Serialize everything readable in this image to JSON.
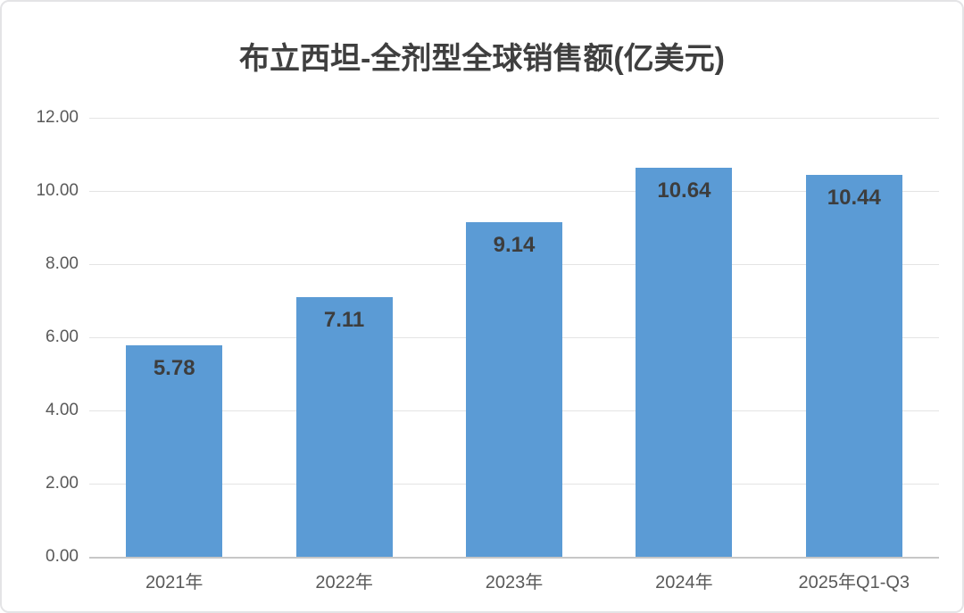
{
  "chart_data": {
    "type": "bar",
    "title": "布立西坦-全剂型全球销售额(亿美元)",
    "categories": [
      "2021年",
      "2022年",
      "2023年",
      "2024年",
      "2025年Q1-Q3"
    ],
    "values": [
      5.78,
      7.11,
      9.14,
      10.64,
      10.44
    ],
    "value_labels": [
      "5.78",
      "7.11",
      "9.14",
      "10.64",
      "10.44"
    ],
    "xlabel": "",
    "ylabel": "",
    "ylim": [
      0,
      12
    ],
    "yticks": [
      {
        "value": 0,
        "label": "0.00"
      },
      {
        "value": 2,
        "label": "2.00"
      },
      {
        "value": 4,
        "label": "4.00"
      },
      {
        "value": 6,
        "label": "6.00"
      },
      {
        "value": 8,
        "label": "8.00"
      },
      {
        "value": 10,
        "label": "10.00"
      },
      {
        "value": 12,
        "label": "12.00"
      }
    ],
    "grid": "horizontal",
    "legend": "none",
    "colors": {
      "bar": "#5b9bd5",
      "title_text": "#3f3f3f",
      "value_label_text": "#3d3d3d",
      "tick_text": "#595959",
      "gridline": "#e4e4e4",
      "axis_line": "#c7c7c7",
      "card_border": "#e4e4e6",
      "background": "#ffffff"
    }
  }
}
